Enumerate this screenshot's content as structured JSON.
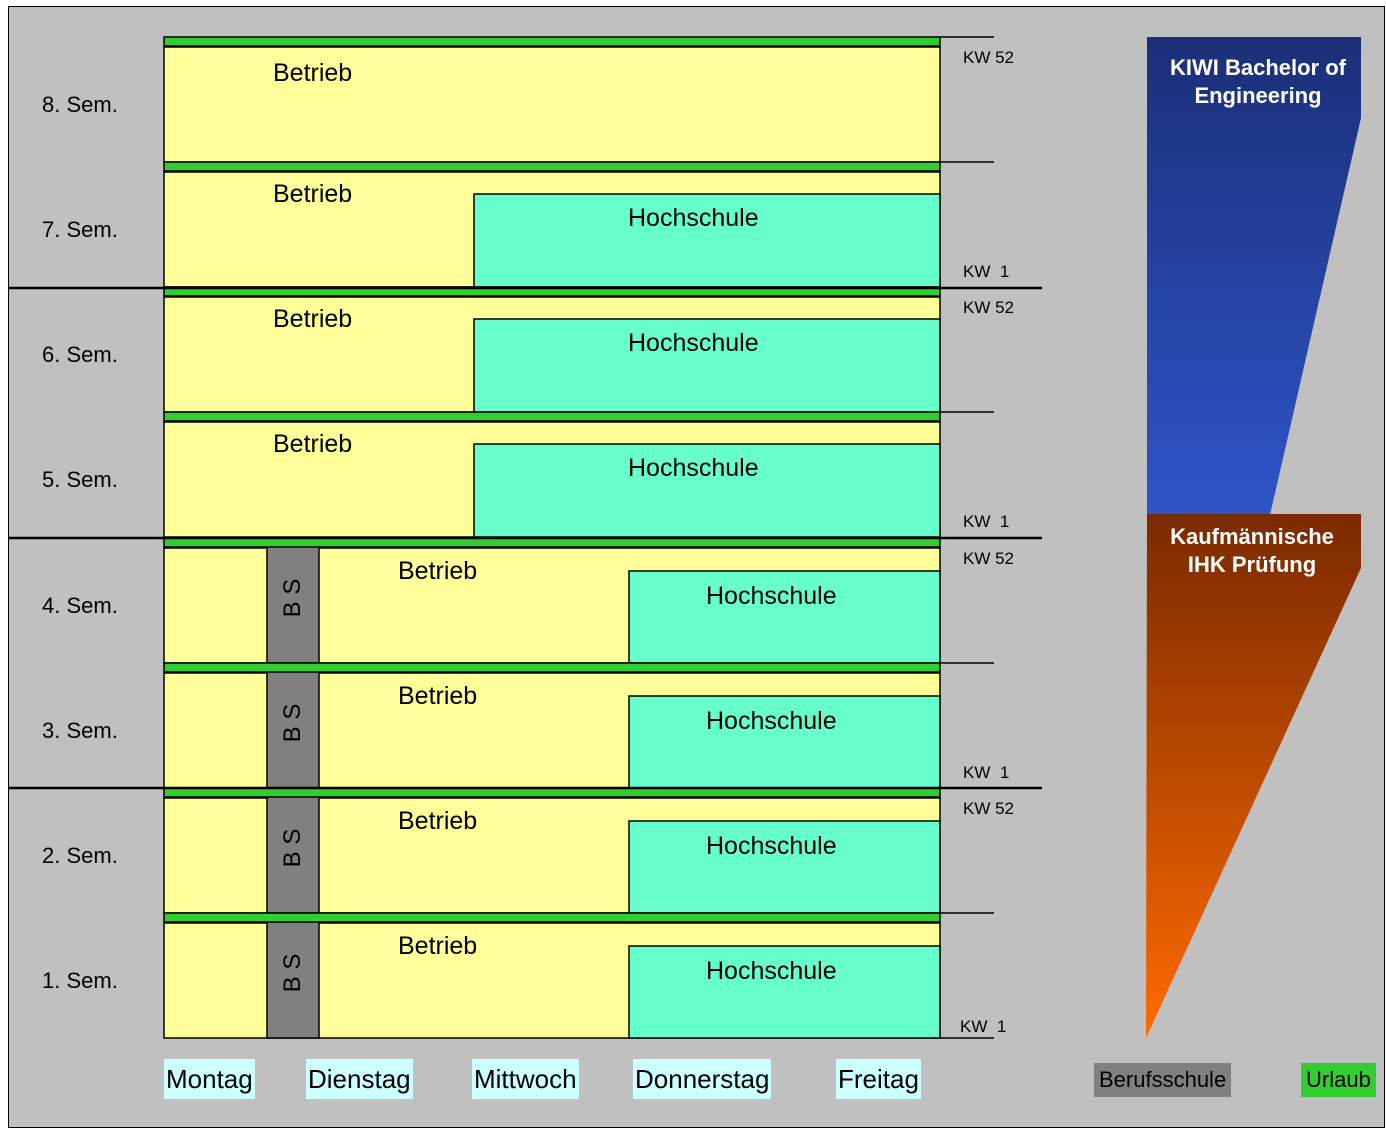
{
  "semesters": [
    "1. Sem.",
    "2. Sem.",
    "3. Sem.",
    "4. Sem.",
    "5. Sem.",
    "6. Sem.",
    "7. Sem.",
    "8. Sem."
  ],
  "kw_start": "KW  1",
  "kw_end": "KW 52",
  "blocks": {
    "betrieb": "Betrieb",
    "hochschule": "Hochschule",
    "bs": "B S"
  },
  "weekdays": [
    "Montag",
    "Dienstag",
    "Mittwoch",
    "Donnerstag",
    "Freitag"
  ],
  "legend": {
    "berufsschule": "Berufsschule",
    "urlaub": "Urlaub"
  },
  "arrows": {
    "bachelor": "KIWI Bachelor of Engineering",
    "ihk": "Kaufmännische IHK Prüfung"
  },
  "colors": {
    "background": "#c0c0c0",
    "betrieb": "#ffff99",
    "hochschule": "#66ffcc",
    "berufsschule": "#808080",
    "urlaub": "#33cc33",
    "weekday_bg": "#ccffff",
    "bachelor_top": "#1b2f78",
    "bachelor_bottom": "#2e55c8",
    "ihk_top": "#7a2a00",
    "ihk_bottom": "#ff6a00"
  }
}
